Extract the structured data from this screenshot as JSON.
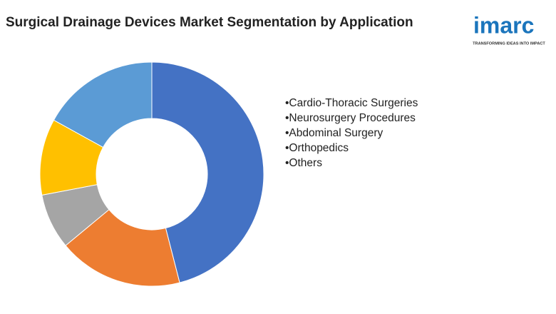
{
  "chart_data": {
    "type": "pie",
    "donut": true,
    "title": "Surgical Drainage Devices Market Segmentation by Application",
    "categories": [
      "•Cardio-Thoracic Surgeries",
      "•Neurosurgery Procedures",
      "•Abdominal Surgery",
      "•Orthopedics",
      "•Others"
    ],
    "values": [
      46,
      18,
      8,
      11,
      17
    ],
    "colors": [
      "#4472c4",
      "#ed7d31",
      "#a5a5a5",
      "#ffc000",
      "#5b9bd5"
    ]
  },
  "logo": {
    "name": "imarc",
    "tagline": "TRANSFORMING IDEAS INTO IMPACT"
  }
}
